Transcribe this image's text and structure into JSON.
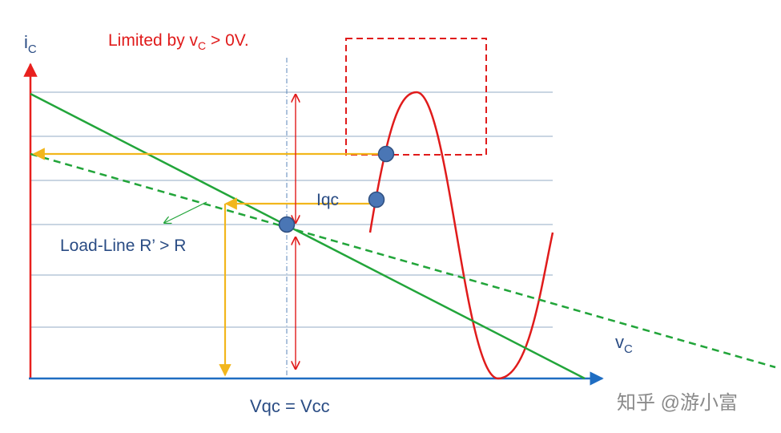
{
  "labels": {
    "y_axis": {
      "main": "i",
      "sub": "C"
    },
    "x_axis": {
      "main": "v",
      "sub": "C"
    },
    "limit": {
      "prefix": "Limited by v",
      "sub": "C",
      "suffix": " > 0V."
    },
    "iqc": "Iqc",
    "load_line": "Load-Line R’ > R",
    "vqc": "Vqc = Vcc",
    "watermark": "知乎 @游小富"
  },
  "colors": {
    "axis_y": "#e8201e",
    "axis_x": "#1f6dc2",
    "grid": "#a9bcd0",
    "load_line": "#22a53a",
    "guide": "#f2b61c",
    "sine": "#e01b1b",
    "dashed_box": "#e01b1b",
    "arrow_red": "#e01b1b",
    "dot_fill": "#4a76b5",
    "dot_stroke": "#2f4f80",
    "text_blue": "#2a4c84",
    "text_red": "#e01b1b",
    "watermark": "#8a8a8a"
  }
}
